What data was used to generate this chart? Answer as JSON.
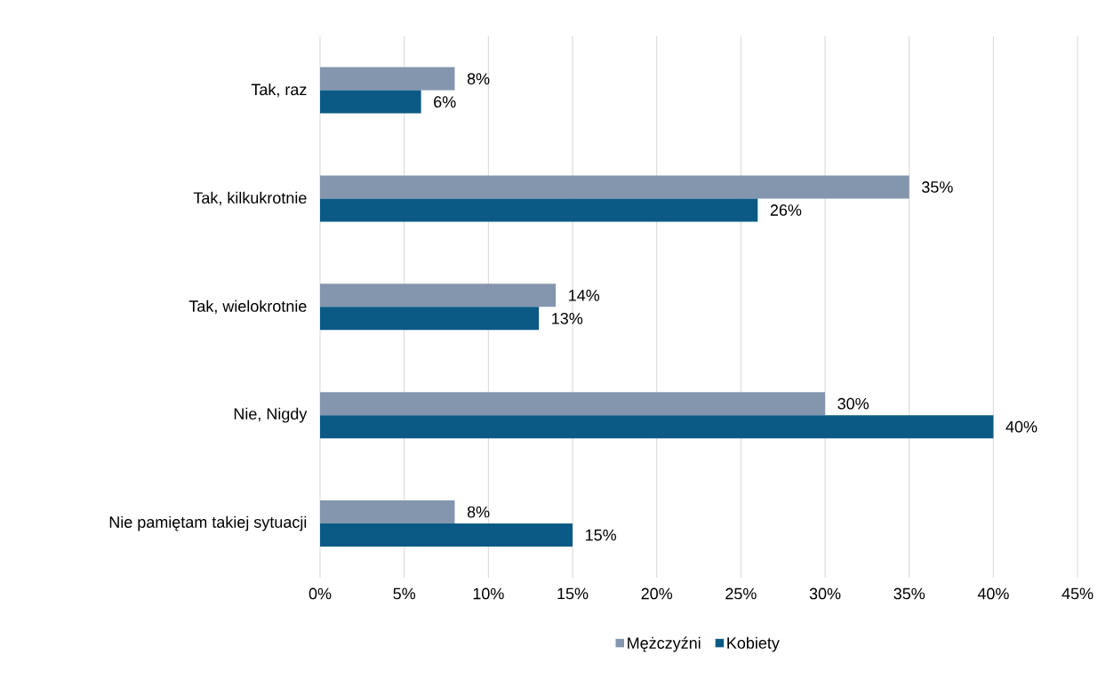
{
  "chart_data": {
    "type": "bar",
    "orientation": "horizontal",
    "categories": [
      "Tak, raz",
      "Tak, kilkukrotnie",
      "Tak, wielokrotnie",
      "Nie, Nigdy",
      "Nie pamiętam takiej sytuacji"
    ],
    "series": [
      {
        "name": "Mężczyźni",
        "color": "#8496ae",
        "values": [
          8,
          35,
          14,
          30,
          8
        ],
        "value_labels": [
          "8%",
          "35%",
          "14%",
          "30%",
          "8%"
        ]
      },
      {
        "name": "Kobiety",
        "color": "#0b5a85",
        "values": [
          6,
          26,
          13,
          40,
          15
        ],
        "value_labels": [
          "6%",
          "26%",
          "13%",
          "40%",
          "15%"
        ]
      }
    ],
    "xlim": [
      0,
      45
    ],
    "xticks": [
      {
        "value": 0,
        "label": "0%"
      },
      {
        "value": 5,
        "label": "5%"
      },
      {
        "value": 10,
        "label": "10%"
      },
      {
        "value": 15,
        "label": "15%"
      },
      {
        "value": 20,
        "label": "20%"
      },
      {
        "value": 25,
        "label": "25%"
      },
      {
        "value": 30,
        "label": "30%"
      },
      {
        "value": 35,
        "label": "35%"
      },
      {
        "value": 40,
        "label": "40%"
      },
      {
        "value": 45,
        "label": "45%"
      }
    ],
    "grid": "x",
    "legend": "bottom"
  }
}
